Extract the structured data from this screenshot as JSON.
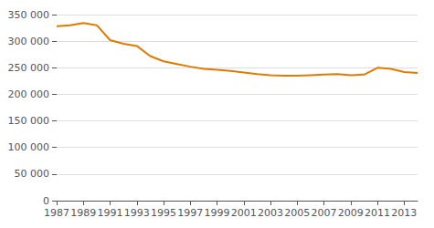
{
  "chart_data": {
    "type": "line",
    "x": [
      1987,
      1988,
      1989,
      1990,
      1991,
      1992,
      1993,
      1994,
      1995,
      1996,
      1997,
      1998,
      1999,
      2000,
      2001,
      2002,
      2003,
      2004,
      2005,
      2006,
      2007,
      2008,
      2009,
      2010,
      2011,
      2012,
      2013,
      2014
    ],
    "values": [
      328000,
      330000,
      334000,
      330000,
      302000,
      295000,
      291000,
      272000,
      262000,
      257000,
      252000,
      248000,
      246000,
      244000,
      241000,
      238000,
      236000,
      235000,
      235000,
      236000,
      237000,
      238000,
      236000,
      237000,
      250000,
      248000,
      242000,
      240000
    ],
    "color": "#e07b00",
    "xlim": [
      1987,
      2014
    ],
    "xticks": [
      1987,
      1989,
      1991,
      1993,
      1995,
      1997,
      1999,
      2001,
      2003,
      2005,
      2007,
      2009,
      2011,
      2013
    ],
    "ylim": [
      0,
      350000
    ],
    "yticks": [
      0,
      {
        "value": 50000,
        "label": "50 000"
      },
      {
        "value": 100000,
        "label": "100 000"
      },
      {
        "value": 150000,
        "label": "150 000"
      },
      {
        "value": 200000,
        "label": "200 000"
      },
      {
        "value": 250000,
        "label": "250 000"
      },
      {
        "value": 300000,
        "label": "300 000"
      },
      {
        "value": 350000,
        "label": "350 000"
      }
    ],
    "grid": true
  }
}
